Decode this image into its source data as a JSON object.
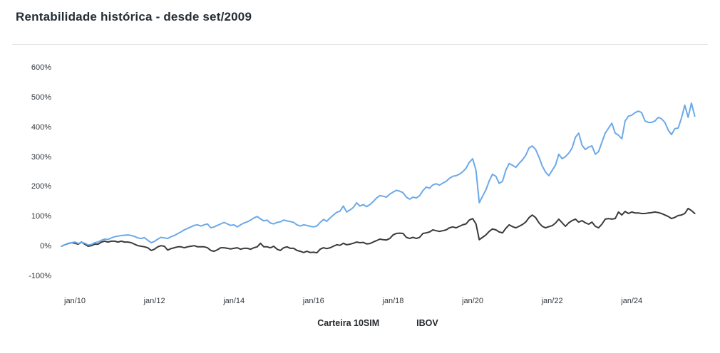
{
  "title": "Rentabilidade histórica - desde set/2009",
  "chart_data": {
    "type": "line",
    "title": "Rentabilidade histórica - desde set/2009",
    "xlabel": "",
    "ylabel": "",
    "unit": "%",
    "grid": false,
    "legend_position": "bottom-center",
    "ylim": [
      -100,
      600
    ],
    "start_year": 2009,
    "start_month": 9,
    "frequency": "monthly",
    "y_ticks": [
      {
        "label": "600%",
        "value": 600
      },
      {
        "label": "500%",
        "value": 500
      },
      {
        "label": "400%",
        "value": 400
      },
      {
        "label": "300%",
        "value": 300
      },
      {
        "label": "200%",
        "value": 200
      },
      {
        "label": "100%",
        "value": 100
      },
      {
        "label": "0%",
        "value": 0
      },
      {
        "label": "-100%",
        "value": -100
      }
    ],
    "x_ticks": [
      {
        "label": "jan/10",
        "year": 2010
      },
      {
        "label": "jan/12",
        "year": 2012
      },
      {
        "label": "jan/14",
        "year": 2014
      },
      {
        "label": "jan/16",
        "year": 2016
      },
      {
        "label": "jan/18",
        "year": 2018
      },
      {
        "label": "jan/20",
        "year": 2020
      },
      {
        "label": "jan/22",
        "year": 2022
      },
      {
        "label": "jan/24",
        "year": 2024
      }
    ],
    "series": [
      {
        "name": "IBOV",
        "color": "#3a3a3a",
        "values": [
          0,
          5,
          9,
          12,
          10,
          7,
          14,
          7,
          0,
          2,
          7,
          7,
          14,
          17,
          14,
          17,
          17,
          14,
          17,
          14,
          14,
          12,
          7,
          2,
          0,
          -2,
          -5,
          -14,
          -10,
          -2,
          2,
          0,
          -13,
          -8,
          -5,
          -2,
          -2,
          -5,
          -2,
          0,
          2,
          -2,
          -2,
          -2,
          -5,
          -14,
          -17,
          -12,
          -5,
          -5,
          -7,
          -9,
          -7,
          -5,
          -10,
          -7,
          -7,
          -10,
          -5,
          -2,
          10,
          -2,
          -2,
          -5,
          0,
          -10,
          -14,
          -5,
          -2,
          -7,
          -7,
          -14,
          -17,
          -21,
          -17,
          -21,
          -20,
          -22,
          -10,
          -5,
          -8,
          -5,
          0,
          5,
          3,
          10,
          5,
          7,
          10,
          14,
          12,
          13,
          8,
          9,
          14,
          19,
          24,
          22,
          21,
          26,
          38,
          43,
          44,
          43,
          30,
          26,
          30,
          26,
          30,
          43,
          45,
          48,
          55,
          52,
          50,
          52,
          55,
          62,
          65,
          62,
          67,
          72,
          75,
          88,
          93,
          75,
          22,
          30,
          38,
          50,
          58,
          55,
          48,
          45,
          60,
          72,
          66,
          62,
          67,
          73,
          81,
          96,
          105,
          96,
          79,
          67,
          62,
          66,
          69,
          78,
          91,
          79,
          67,
          79,
          86,
          91,
          81,
          86,
          79,
          74,
          81,
          67,
          62,
          74,
          91,
          93,
          91,
          93,
          115,
          105,
          117,
          110,
          115,
          112,
          112,
          110,
          110,
          112,
          113,
          115,
          113,
          110,
          105,
          100,
          93,
          97,
          103,
          105,
          110,
          127,
          120,
          110
        ]
      },
      {
        "name": "Carteira 10SIM",
        "color": "#6ca9e8",
        "values": [
          0,
          5,
          10,
          12,
          14,
          9,
          13,
          10,
          4,
          6,
          12,
          14,
          20,
          24,
          23,
          28,
          32,
          34,
          36,
          37,
          38,
          36,
          33,
          28,
          26,
          29,
          20,
          12,
          16,
          24,
          30,
          28,
          26,
          32,
          36,
          42,
          48,
          55,
          60,
          65,
          70,
          72,
          68,
          72,
          75,
          62,
          65,
          70,
          75,
          80,
          75,
          70,
          72,
          65,
          72,
          78,
          82,
          88,
          95,
          100,
          92,
          85,
          88,
          78,
          75,
          80,
          82,
          88,
          85,
          83,
          80,
          72,
          68,
          72,
          70,
          67,
          65,
          68,
          80,
          90,
          84,
          95,
          105,
          114,
          118,
          135,
          115,
          122,
          130,
          146,
          135,
          140,
          133,
          140,
          150,
          162,
          170,
          168,
          165,
          175,
          182,
          188,
          185,
          180,
          165,
          158,
          165,
          162,
          170,
          187,
          199,
          195,
          206,
          210,
          205,
          212,
          218,
          228,
          235,
          237,
          242,
          250,
          262,
          282,
          294,
          255,
          146,
          168,
          189,
          220,
          242,
          235,
          211,
          218,
          255,
          278,
          272,
          265,
          278,
          290,
          305,
          330,
          337,
          325,
          300,
          270,
          249,
          237,
          255,
          273,
          309,
          294,
          301,
          313,
          330,
          366,
          380,
          340,
          325,
          333,
          337,
          309,
          318,
          349,
          380,
          397,
          413,
          380,
          373,
          361,
          421,
          437,
          440,
          449,
          454,
          449,
          421,
          416,
          416,
          421,
          433,
          428,
          416,
          390,
          375,
          395,
          397,
          430,
          474,
          433,
          481,
          437
        ]
      }
    ],
    "legend": [
      "Carteira 10SIM",
      "IBOV"
    ]
  }
}
